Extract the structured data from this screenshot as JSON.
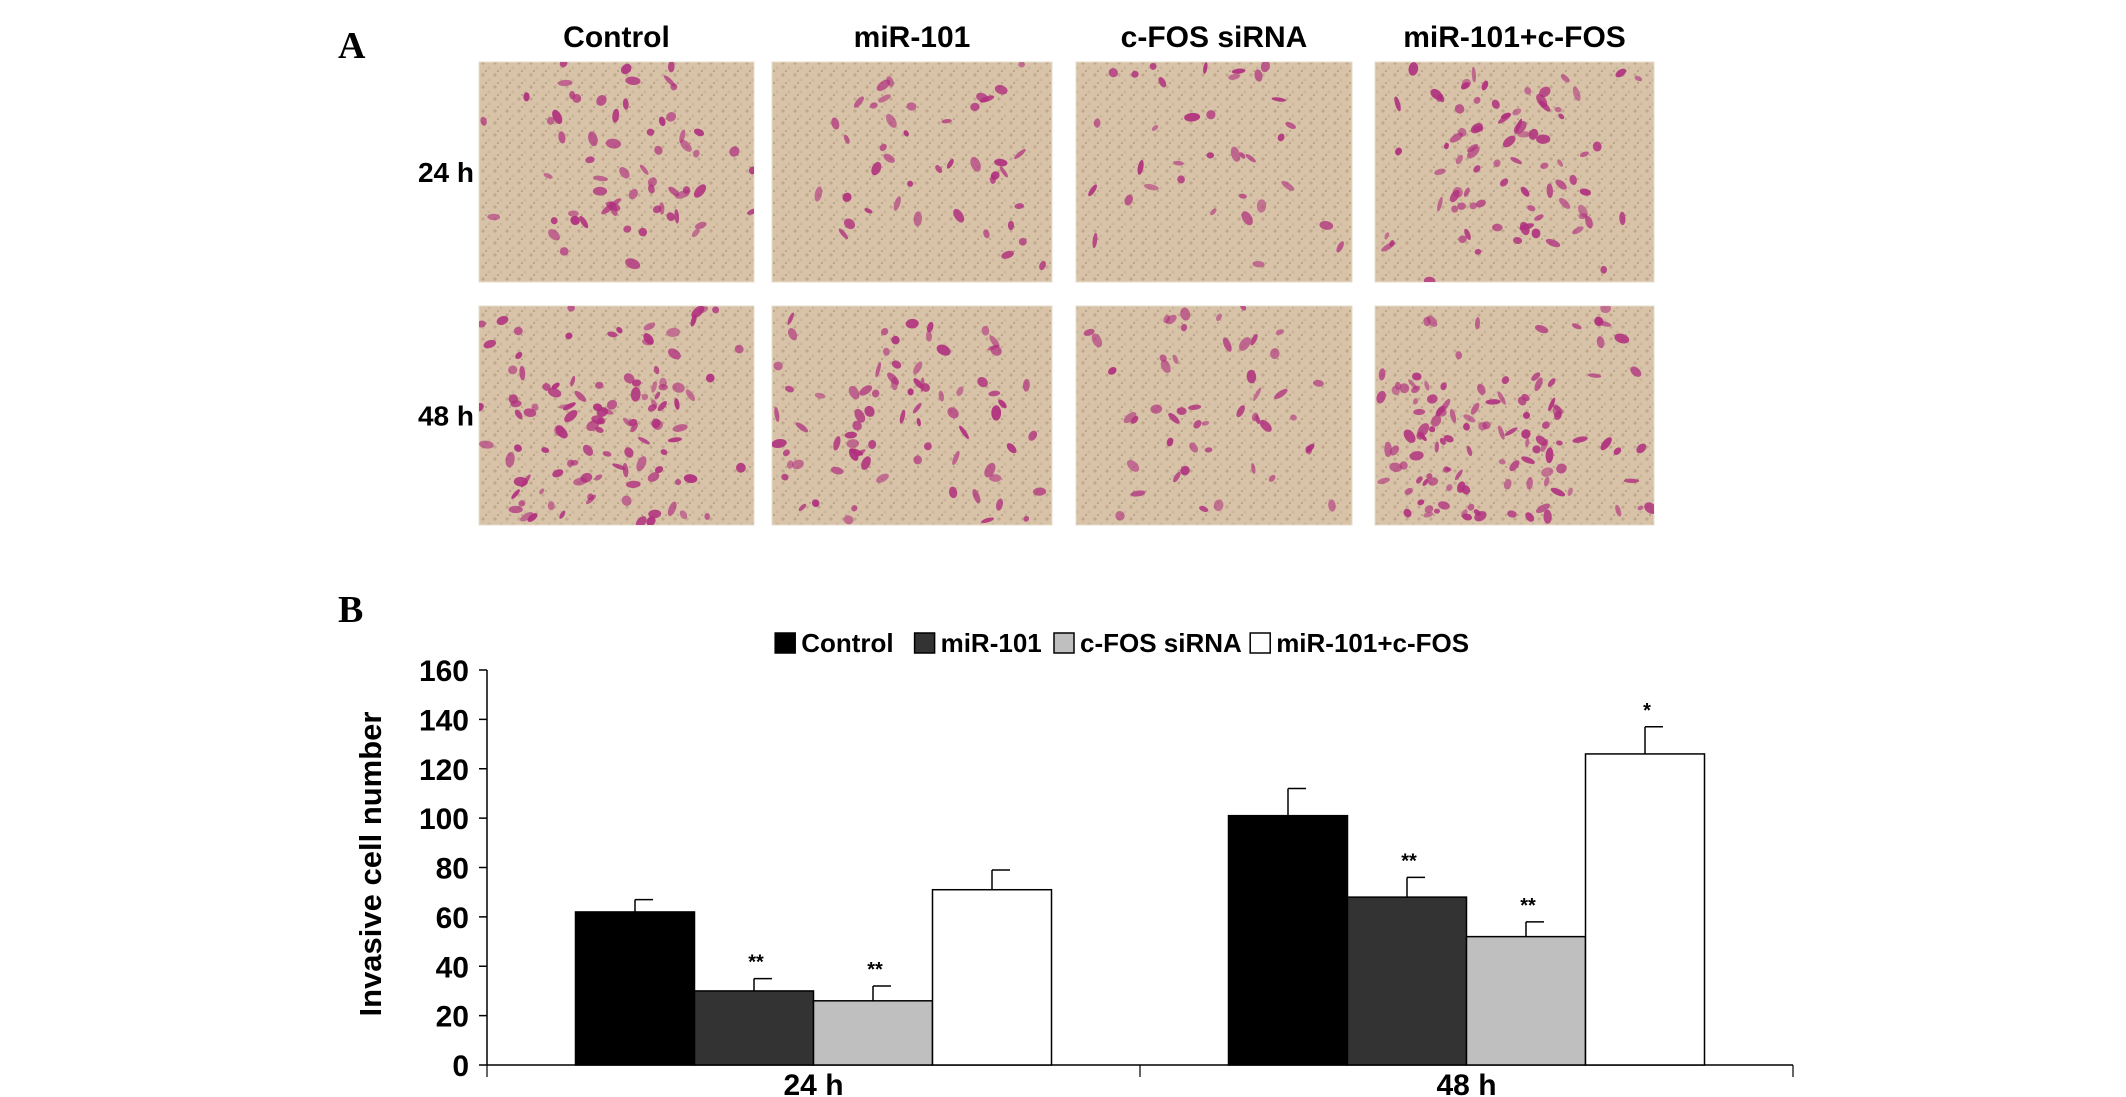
{
  "panel_a": {
    "label": "A",
    "columns": [
      "Control",
      "miR-101",
      "c-FOS siRNA",
      "miR-101+c-FOS"
    ],
    "rows": [
      "24 h",
      "48 h"
    ],
    "density": [
      [
        0.45,
        0.3,
        0.25,
        0.6
      ],
      [
        0.8,
        0.55,
        0.35,
        0.85
      ]
    ],
    "colors": {
      "background": "#d8c3a8",
      "stain": "#b0307e"
    }
  },
  "panel_b": {
    "label": "B"
  },
  "chart_data": {
    "type": "bar",
    "categories": [
      "24 h",
      "48 h"
    ],
    "series": [
      {
        "name": "Control",
        "color": "#000000",
        "values": [
          62,
          101
        ],
        "errors": [
          5,
          11
        ],
        "significance": [
          "",
          ""
        ]
      },
      {
        "name": "miR-101",
        "color": "#333333",
        "values": [
          30,
          68
        ],
        "errors": [
          5,
          8
        ],
        "significance": [
          "**",
          "**"
        ]
      },
      {
        "name": "c-FOS siRNA",
        "color": "#bfbfbf",
        "values": [
          26,
          52
        ],
        "errors": [
          6,
          6
        ],
        "significance": [
          "**",
          "**"
        ]
      },
      {
        "name": "miR-101+c-FOS",
        "color": "#ffffff",
        "values": [
          71,
          126
        ],
        "errors": [
          8,
          11
        ],
        "significance": [
          "",
          "*"
        ]
      }
    ],
    "ylabel": "Invasive cell number",
    "xlabel": "",
    "title": "",
    "ylim": [
      0,
      160
    ],
    "yticks": [
      0,
      20,
      40,
      60,
      80,
      100,
      120,
      140,
      160
    ],
    "legend_position": "top-center",
    "grid": false
  }
}
